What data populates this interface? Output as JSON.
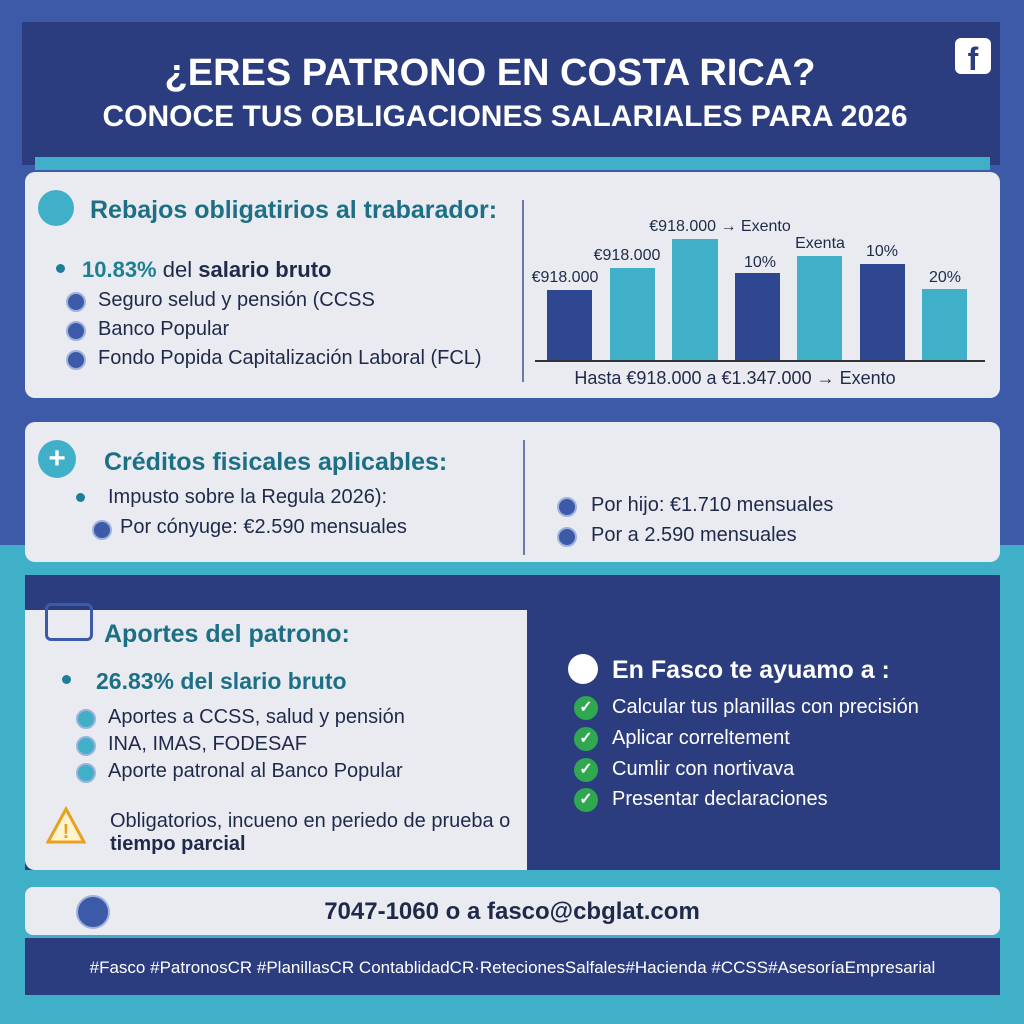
{
  "header": {
    "title": "¿ERES PATRONO EN COSTA RICA?",
    "subtitle": "CONOCE TUS OBLIGACIONES SALARIALES PARA 2026"
  },
  "deductions": {
    "title": "Rebajos obligatirios al trabarador:",
    "rate": "10.83%",
    "rate_text": "del",
    "rate_bold": "salario bruto",
    "items": [
      "Seguro selud y pensión (CCSS",
      "Banco Popular",
      "Fondo Popida Capitalización Laboral (FCL)"
    ],
    "chart": {
      "labels": [
        "€918.000",
        "€918.000",
        "€918.000 → Exento",
        "10%",
        "Exenta",
        "10%",
        "20%"
      ],
      "caption": "Hasta €918.000 a €1.347.000 → Exento"
    }
  },
  "credits": {
    "title": "Créditos fisicales aplicables:",
    "intro": "Impusto sobre la Regula 2026):",
    "items": [
      "Por cónyuge: €2.590 mensuales"
    ],
    "right_items": [
      "Por hijo: €1.710 mensuales",
      "Por a 2.590 mensuales"
    ]
  },
  "employer": {
    "title": "Aportes del patrono:",
    "rate": "26.83% del slario bruto",
    "items": [
      "Aportes a CCSS, salud y pensión",
      "INA, IMAS, FODESAF",
      "Aporte patronal al Banco Popular"
    ],
    "warning": "Obligatorios, incueno en periedo de prueba o",
    "warning_bold": "tiempo parcial"
  },
  "fasco": {
    "title": "En Fasco te ayuamo a :",
    "items": [
      "Calcular tus planillas con precisión",
      "Aplicar correltement",
      "Cumlir con nortivava",
      "Presentar declaraciones"
    ]
  },
  "contact": "7047-1060 o a fasco@cbglat.com",
  "footer": "#Fasco #PatronosCR #PlanillasCR ContablidadCR·RetecionesSalfales#Hacienda #CCSS#AsesoríaEmpresarial"
}
